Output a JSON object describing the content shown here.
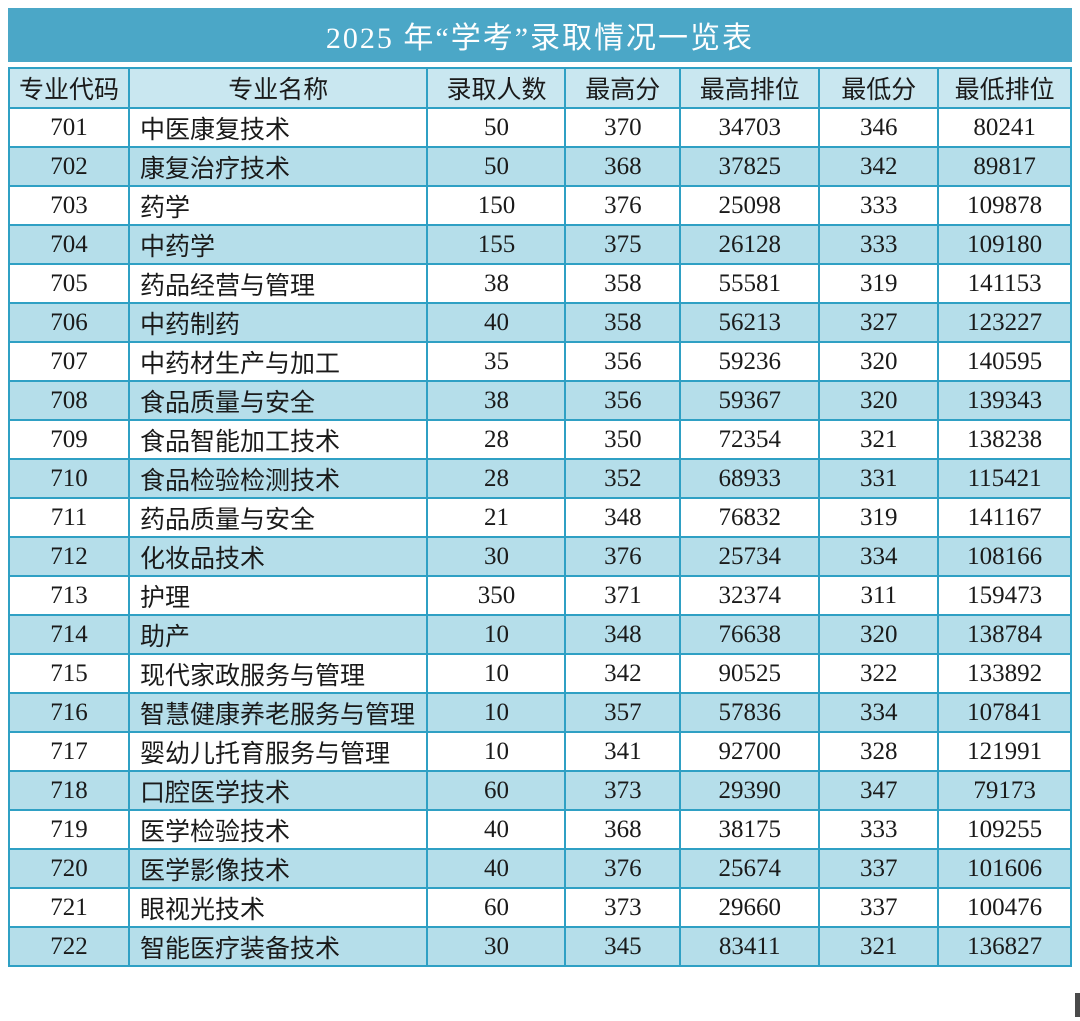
{
  "page": {
    "title": "2025 年“学考”录取情况一览表"
  },
  "colors": {
    "title_bar": "#4BA7C7",
    "border": "#2FA0C4",
    "header_bg": "#C9E7F0",
    "row_alt_bg": "#B5DEEA",
    "row_bg": "#FFFFFF",
    "text": "#1A1A1A",
    "title_text": "#FDFEFE"
  },
  "table": {
    "columns": [
      {
        "key": "code",
        "label": "专业代码"
      },
      {
        "key": "name",
        "label": "专业名称"
      },
      {
        "key": "admitted",
        "label": "录取人数"
      },
      {
        "key": "max_score",
        "label": "最高分"
      },
      {
        "key": "max_rank",
        "label": "最高排位"
      },
      {
        "key": "min_score",
        "label": "最低分"
      },
      {
        "key": "min_rank",
        "label": "最低排位"
      }
    ],
    "rows": [
      {
        "code": "701",
        "name": "中医康复技术",
        "admitted": "50",
        "max_score": "370",
        "max_rank": "34703",
        "min_score": "346",
        "min_rank": "80241"
      },
      {
        "code": "702",
        "name": "康复治疗技术",
        "admitted": "50",
        "max_score": "368",
        "max_rank": "37825",
        "min_score": "342",
        "min_rank": "89817"
      },
      {
        "code": "703",
        "name": "药学",
        "admitted": "150",
        "max_score": "376",
        "max_rank": "25098",
        "min_score": "333",
        "min_rank": "109878"
      },
      {
        "code": "704",
        "name": "中药学",
        "admitted": "155",
        "max_score": "375",
        "max_rank": "26128",
        "min_score": "333",
        "min_rank": "109180"
      },
      {
        "code": "705",
        "name": "药品经营与管理",
        "admitted": "38",
        "max_score": "358",
        "max_rank": "55581",
        "min_score": "319",
        "min_rank": "141153"
      },
      {
        "code": "706",
        "name": "中药制药",
        "admitted": "40",
        "max_score": "358",
        "max_rank": "56213",
        "min_score": "327",
        "min_rank": "123227"
      },
      {
        "code": "707",
        "name": "中药材生产与加工",
        "admitted": "35",
        "max_score": "356",
        "max_rank": "59236",
        "min_score": "320",
        "min_rank": "140595"
      },
      {
        "code": "708",
        "name": "食品质量与安全",
        "admitted": "38",
        "max_score": "356",
        "max_rank": "59367",
        "min_score": "320",
        "min_rank": "139343"
      },
      {
        "code": "709",
        "name": "食品智能加工技术",
        "admitted": "28",
        "max_score": "350",
        "max_rank": "72354",
        "min_score": "321",
        "min_rank": "138238"
      },
      {
        "code": "710",
        "name": "食品检验检测技术",
        "admitted": "28",
        "max_score": "352",
        "max_rank": "68933",
        "min_score": "331",
        "min_rank": "115421"
      },
      {
        "code": "711",
        "name": "药品质量与安全",
        "admitted": "21",
        "max_score": "348",
        "max_rank": "76832",
        "min_score": "319",
        "min_rank": "141167"
      },
      {
        "code": "712",
        "name": "化妆品技术",
        "admitted": "30",
        "max_score": "376",
        "max_rank": "25734",
        "min_score": "334",
        "min_rank": "108166"
      },
      {
        "code": "713",
        "name": "护理",
        "admitted": "350",
        "max_score": "371",
        "max_rank": "32374",
        "min_score": "311",
        "min_rank": "159473"
      },
      {
        "code": "714",
        "name": "助产",
        "admitted": "10",
        "max_score": "348",
        "max_rank": "76638",
        "min_score": "320",
        "min_rank": "138784"
      },
      {
        "code": "715",
        "name": "现代家政服务与管理",
        "admitted": "10",
        "max_score": "342",
        "max_rank": "90525",
        "min_score": "322",
        "min_rank": "133892"
      },
      {
        "code": "716",
        "name": "智慧健康养老服务与管理",
        "admitted": "10",
        "max_score": "357",
        "max_rank": "57836",
        "min_score": "334",
        "min_rank": "107841"
      },
      {
        "code": "717",
        "name": "婴幼儿托育服务与管理",
        "admitted": "10",
        "max_score": "341",
        "max_rank": "92700",
        "min_score": "328",
        "min_rank": "121991"
      },
      {
        "code": "718",
        "name": "口腔医学技术",
        "admitted": "60",
        "max_score": "373",
        "max_rank": "29390",
        "min_score": "347",
        "min_rank": "79173"
      },
      {
        "code": "719",
        "name": "医学检验技术",
        "admitted": "40",
        "max_score": "368",
        "max_rank": "38175",
        "min_score": "333",
        "min_rank": "109255"
      },
      {
        "code": "720",
        "name": "医学影像技术",
        "admitted": "40",
        "max_score": "376",
        "max_rank": "25674",
        "min_score": "337",
        "min_rank": "101606"
      },
      {
        "code": "721",
        "name": "眼视光技术",
        "admitted": "60",
        "max_score": "373",
        "max_rank": "29660",
        "min_score": "337",
        "min_rank": "100476"
      },
      {
        "code": "722",
        "name": "智能医疗装备技术",
        "admitted": "30",
        "max_score": "345",
        "max_rank": "83411",
        "min_score": "321",
        "min_rank": "136827"
      }
    ]
  },
  "chart_data": {
    "type": "table",
    "title": "2025 年“学考”录取情况一览表",
    "columns": [
      "专业代码",
      "专业名称",
      "录取人数",
      "最高分",
      "最高排位",
      "最低分",
      "最低排位"
    ],
    "rows": [
      [
        "701",
        "中医康复技术",
        50,
        370,
        34703,
        346,
        80241
      ],
      [
        "702",
        "康复治疗技术",
        50,
        368,
        37825,
        342,
        89817
      ],
      [
        "703",
        "药学",
        150,
        376,
        25098,
        333,
        109878
      ],
      [
        "704",
        "中药学",
        155,
        375,
        26128,
        333,
        109180
      ],
      [
        "705",
        "药品经营与管理",
        38,
        358,
        55581,
        319,
        141153
      ],
      [
        "706",
        "中药制药",
        40,
        358,
        56213,
        327,
        123227
      ],
      [
        "707",
        "中药材生产与加工",
        35,
        356,
        59236,
        320,
        140595
      ],
      [
        "708",
        "食品质量与安全",
        38,
        356,
        59367,
        320,
        139343
      ],
      [
        "709",
        "食品智能加工技术",
        28,
        350,
        72354,
        321,
        138238
      ],
      [
        "710",
        "食品检验检测技术",
        28,
        352,
        68933,
        331,
        115421
      ],
      [
        "711",
        "药品质量与安全",
        21,
        348,
        76832,
        319,
        141167
      ],
      [
        "712",
        "化妆品技术",
        30,
        376,
        25734,
        334,
        108166
      ],
      [
        "713",
        "护理",
        350,
        371,
        32374,
        311,
        159473
      ],
      [
        "714",
        "助产",
        10,
        348,
        76638,
        320,
        138784
      ],
      [
        "715",
        "现代家政服务与管理",
        10,
        342,
        90525,
        322,
        133892
      ],
      [
        "716",
        "智慧健康养老服务与管理",
        10,
        357,
        57836,
        334,
        107841
      ],
      [
        "717",
        "婴幼儿托育服务与管理",
        10,
        341,
        92700,
        328,
        121991
      ],
      [
        "718",
        "口腔医学技术",
        60,
        373,
        29390,
        347,
        79173
      ],
      [
        "719",
        "医学检验技术",
        40,
        368,
        38175,
        333,
        109255
      ],
      [
        "720",
        "医学影像技术",
        40,
        376,
        25674,
        337,
        101606
      ],
      [
        "721",
        "眼视光技术",
        60,
        373,
        29660,
        337,
        100476
      ],
      [
        "722",
        "智能医疗装备技术",
        30,
        345,
        83411,
        321,
        136827
      ]
    ]
  }
}
